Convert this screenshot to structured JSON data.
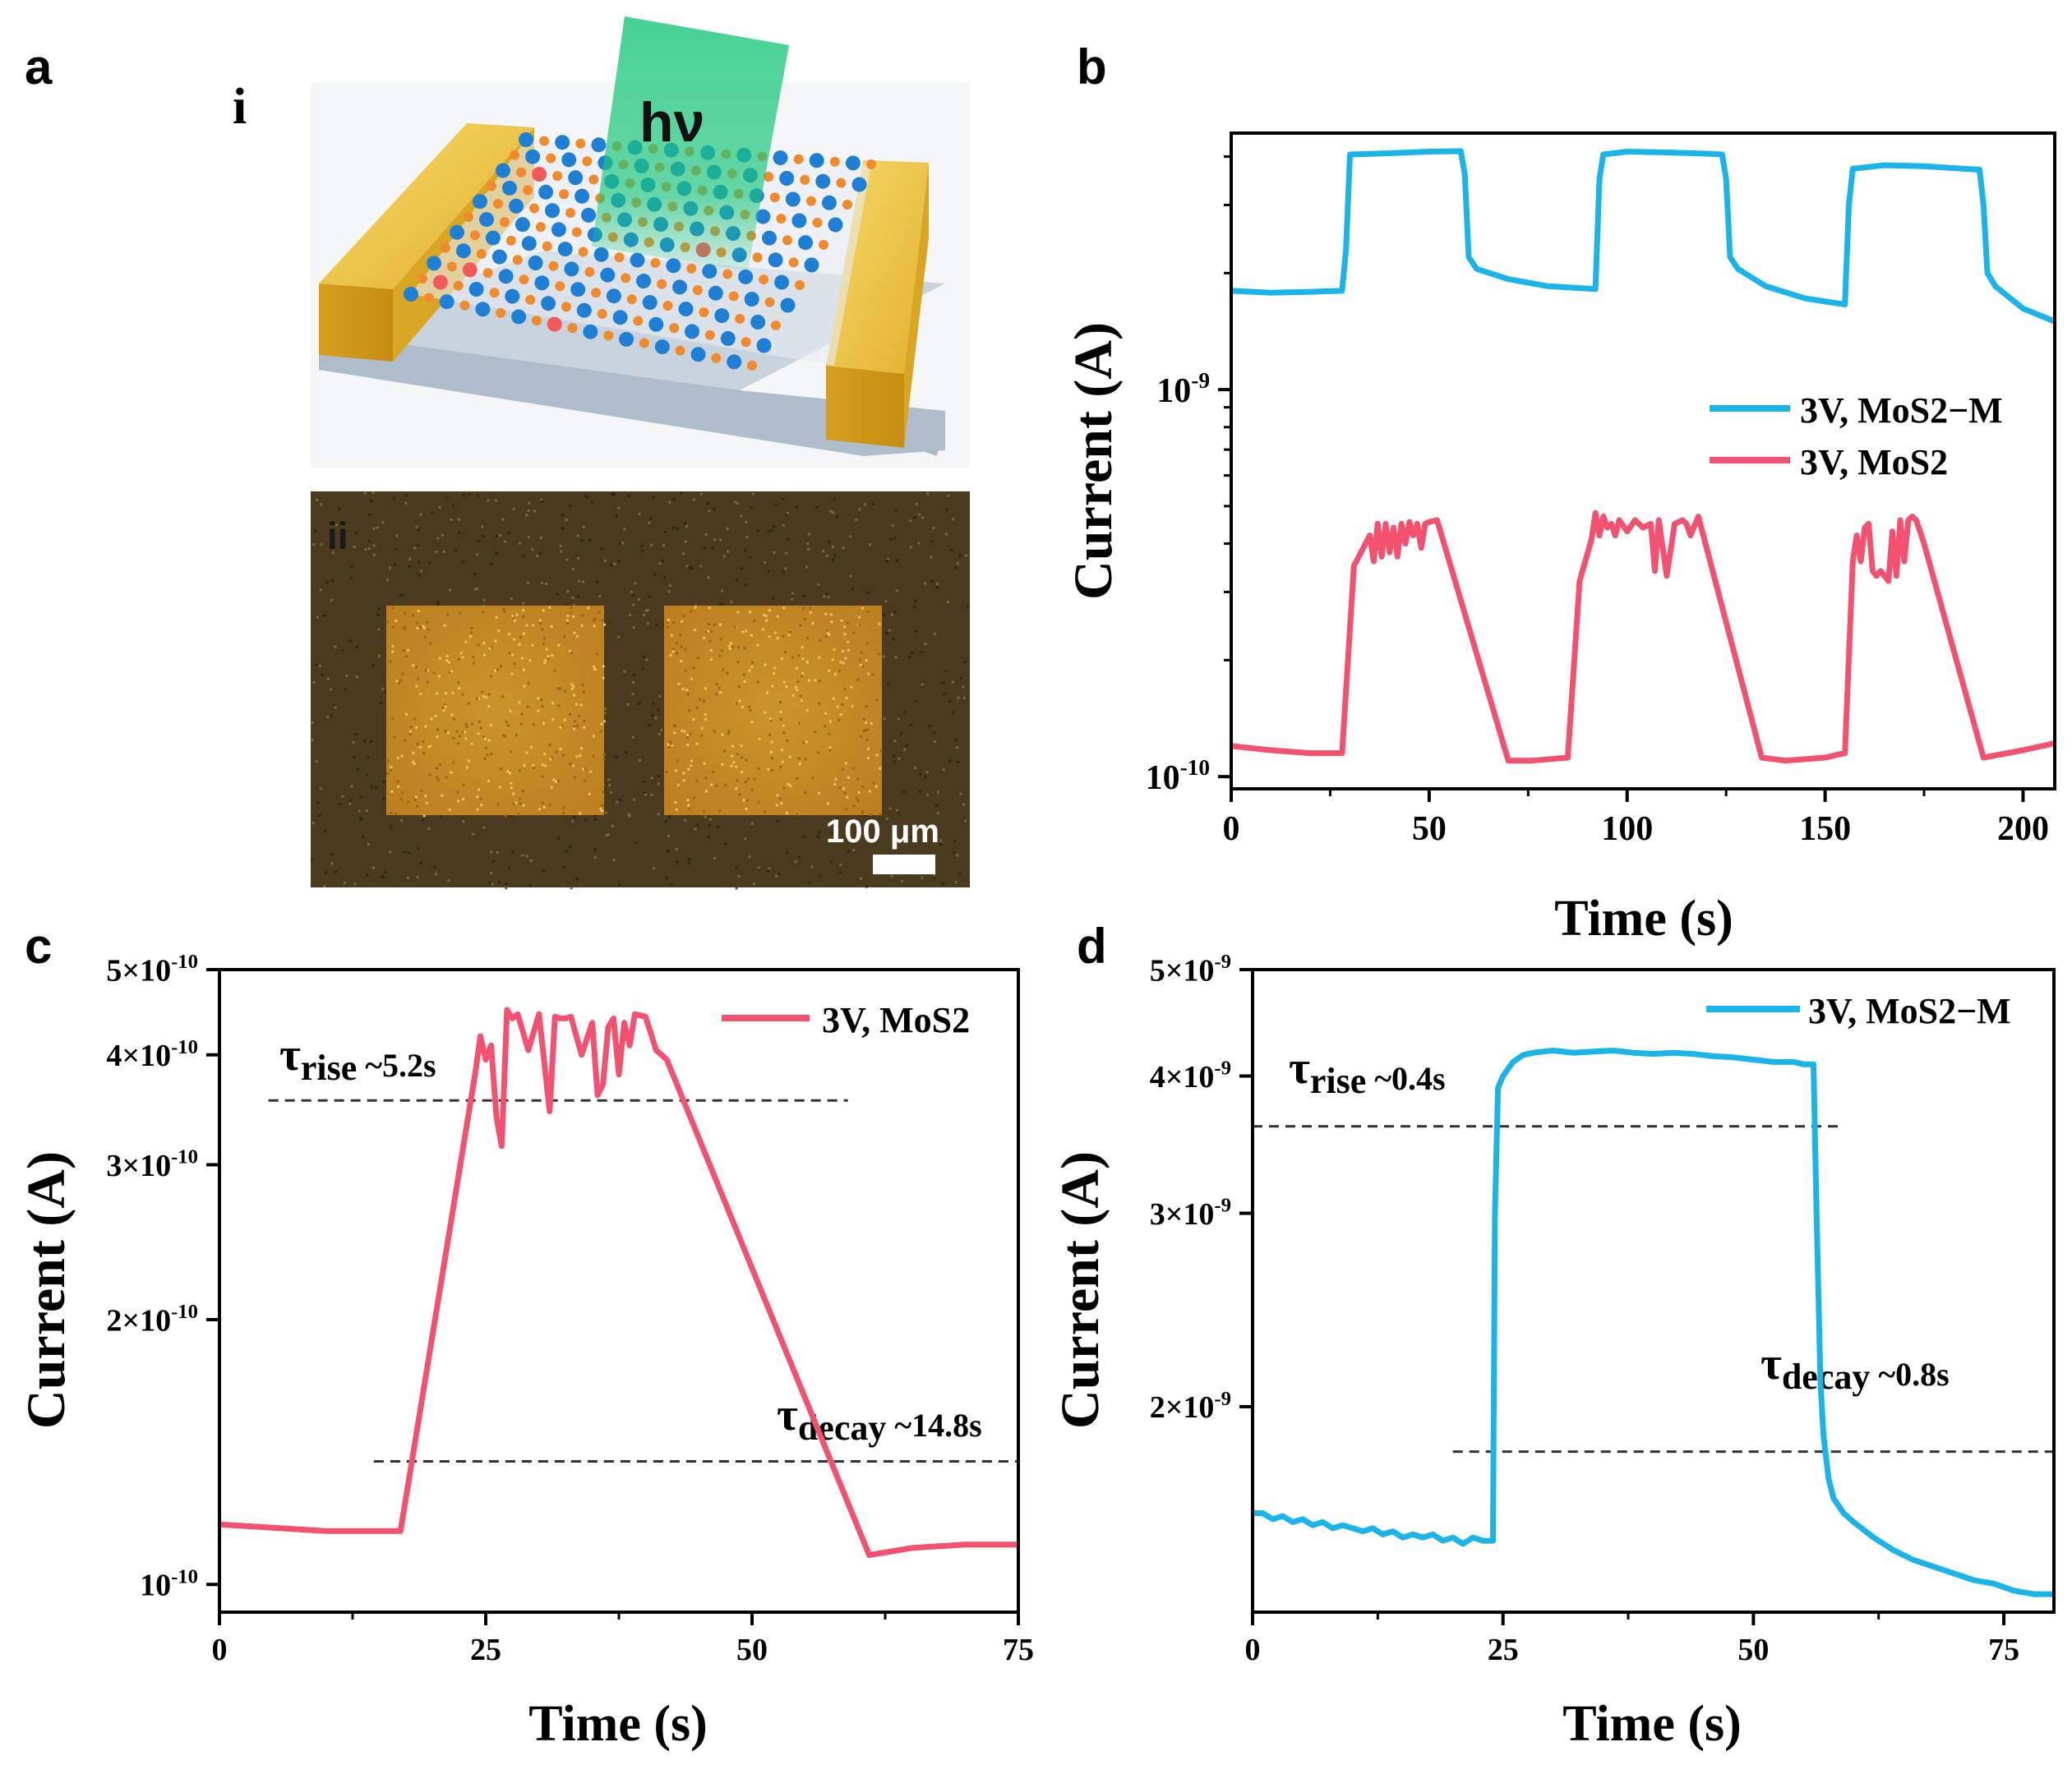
{
  "figure": {
    "panel_labels": {
      "a": "a",
      "b": "b",
      "c": "c",
      "d": "d"
    },
    "sublabels": {
      "i": "i",
      "ii": "ii"
    },
    "schematic": {
      "beam_label": "hν"
    },
    "micrograph": {
      "scale_bar": "100 μm"
    },
    "colors": {
      "blue": "#1ab4ea",
      "red": "#f2526f",
      "gold": "#e7b633",
      "beam": "#19c77a"
    }
  },
  "chart_data": [
    {
      "id": "b",
      "type": "line",
      "xscale": "linear",
      "yscale": "log",
      "xlabel": "Time (s)",
      "ylabel": "Current (A)",
      "xlim": [
        0,
        208
      ],
      "ylim": [
        9.3e-11,
        4.6e-09
      ],
      "xticks": [
        {
          "v": 0,
          "label": "0"
        },
        {
          "v": 50,
          "label": "50"
        },
        {
          "v": 100,
          "label": "100"
        },
        {
          "v": 150,
          "label": "150"
        },
        {
          "v": 200,
          "label": "200"
        }
      ],
      "yticks": [
        {
          "v": 1e-10,
          "base": "10",
          "exp": "-10"
        },
        {
          "v": 1e-09,
          "base": "10",
          "exp": "-9"
        }
      ],
      "legend": {
        "position": "center-right",
        "entries": [
          "3V, MoS2−M",
          "3V, MoS2"
        ]
      },
      "series": [
        {
          "name": "3V, MoS2−M",
          "color": "#1ab4ea",
          "x": [
            0,
            10,
            20,
            28,
            29,
            30,
            40,
            50,
            58,
            59,
            60,
            62,
            70,
            80,
            92,
            93,
            94,
            100,
            110,
            120,
            124,
            125,
            126,
            128,
            135,
            145,
            155,
            156,
            157,
            165,
            175,
            185,
            189,
            190,
            191,
            193,
            200,
            208
          ],
          "y": [
            1.8e-09,
            1.78e-09,
            1.79e-09,
            1.8e-09,
            2.3e-09,
            4.05e-09,
            4.08e-09,
            4.12e-09,
            4.13e-09,
            3.6e-09,
            2.2e-09,
            2.05e-09,
            1.93e-09,
            1.85e-09,
            1.82e-09,
            3.5e-09,
            4.05e-09,
            4.12e-09,
            4.1e-09,
            4.07e-09,
            4.05e-09,
            3.5e-09,
            2.2e-09,
            2.05e-09,
            1.85e-09,
            1.72e-09,
            1.66e-09,
            3e-09,
            3.72e-09,
            3.8e-09,
            3.78e-09,
            3.72e-09,
            3.7e-09,
            3e-09,
            2e-09,
            1.85e-09,
            1.62e-09,
            1.5e-09
          ]
        },
        {
          "name": "3V, MoS2",
          "color": "#f2526f",
          "x": [
            0,
            10,
            20,
            28,
            31,
            35,
            36,
            37,
            38,
            39,
            40,
            41,
            42,
            43,
            44,
            45,
            46,
            47,
            48,
            49,
            50,
            52,
            70,
            76,
            85,
            88,
            91,
            92,
            93,
            94,
            95,
            96,
            97,
            98,
            100,
            102,
            104,
            106,
            107,
            108,
            110,
            112,
            114,
            115,
            116,
            118,
            134,
            140,
            150,
            155,
            157,
            158,
            159,
            160,
            161,
            162,
            163,
            164,
            165,
            166,
            167,
            168,
            169,
            170,
            171,
            172,
            173,
            174,
            175,
            190,
            200,
            208
          ],
          "y": [
            1.2e-10,
            1.17e-10,
            1.15e-10,
            1.15e-10,
            3.5e-10,
            4.2e-10,
            3.6e-10,
            4.5e-10,
            3.7e-10,
            4.5e-10,
            3.8e-10,
            4.4e-10,
            3.7e-10,
            4.5e-10,
            4e-10,
            4.55e-10,
            4.2e-10,
            4.5e-10,
            3.9e-10,
            4.5e-10,
            4.55e-10,
            4.6e-10,
            1.1e-10,
            1.1e-10,
            1.12e-10,
            3.2e-10,
            4.1e-10,
            4.8e-10,
            4.2e-10,
            4.7e-10,
            4.4e-10,
            4.5e-10,
            4.2e-10,
            4.6e-10,
            4.3e-10,
            4.6e-10,
            4.4e-10,
            4.5e-10,
            3.4e-10,
            4.6e-10,
            3.3e-10,
            4.5e-10,
            4.6e-10,
            4.5e-10,
            4.2e-10,
            4.7e-10,
            1.12e-10,
            1.1e-10,
            1.12e-10,
            1.15e-10,
            3.6e-10,
            4.2e-10,
            3.6e-10,
            4.4e-10,
            4.5e-10,
            3.4e-10,
            3.3e-10,
            3.4e-10,
            3.3e-10,
            3.2e-10,
            4.3e-10,
            3.3e-10,
            4.6e-10,
            3.6e-10,
            4.6e-10,
            4.7e-10,
            4.6e-10,
            4.3e-10,
            4e-10,
            1.12e-10,
            1.17e-10,
            1.22e-10
          ]
        }
      ]
    },
    {
      "id": "c",
      "type": "line",
      "xscale": "linear",
      "yscale": "log",
      "xlabel": "Time (s)",
      "ylabel": "Current (A)",
      "xlim": [
        0,
        75
      ],
      "ylim": [
        9.3e-11,
        5e-10
      ],
      "xticks": [
        {
          "v": 0,
          "label": "0"
        },
        {
          "v": 25,
          "label": "25"
        },
        {
          "v": 50,
          "label": "50"
        },
        {
          "v": 75,
          "label": "75"
        }
      ],
      "yticks": [
        {
          "v": 1e-10,
          "base": "10",
          "exp": "-10"
        },
        {
          "v": 2e-10,
          "base": "2×10",
          "exp": "-10"
        },
        {
          "v": 3e-10,
          "base": "3×10",
          "exp": "-10"
        },
        {
          "v": 4e-10,
          "base": "4×10",
          "exp": "-10"
        },
        {
          "v": 5e-10,
          "base": "5×10",
          "exp": "-10"
        }
      ],
      "legend": {
        "position": "top-right",
        "entries": [
          "3V, MoS2"
        ]
      },
      "ref_lines": [
        {
          "y": 3.55e-10,
          "x0": 4.6,
          "x1": 59,
          "label_main": "τ",
          "label_sub": "rise",
          "label_tail": " ~5.2s"
        },
        {
          "y": 1.38e-10,
          "x0": 14.5,
          "x1": 75,
          "label_main": "τ",
          "label_sub": "decay",
          "label_tail": " ~14.8s"
        }
      ],
      "series": [
        {
          "name": "3V, MoS2",
          "color": "#f2526f",
          "x": [
            0,
            5,
            10,
            17,
            24,
            24.5,
            25,
            25.5,
            26,
            26.5,
            27,
            27.5,
            28,
            29,
            30,
            31,
            31.5,
            32,
            32.5,
            33,
            34,
            35,
            35.5,
            36,
            36.5,
            37,
            37.5,
            38,
            38.5,
            39,
            40,
            41,
            42,
            61,
            65,
            70,
            75
          ],
          "y": [
            1.17e-10,
            1.16e-10,
            1.15e-10,
            1.15e-10,
            3.8e-10,
            4.2e-10,
            3.95e-10,
            4.1e-10,
            3.4e-10,
            3.15e-10,
            4.5e-10,
            4.4e-10,
            4.45e-10,
            4.05e-10,
            4.45e-10,
            3.45e-10,
            4.42e-10,
            4.4e-10,
            4.4e-10,
            4.42e-10,
            4e-10,
            4.35e-10,
            3.6e-10,
            3.7e-10,
            4.3e-10,
            4.4e-10,
            3.8e-10,
            4.35e-10,
            4.1e-10,
            4.45e-10,
            4.42e-10,
            4.05e-10,
            3.95e-10,
            1.08e-10,
            1.1e-10,
            1.11e-10,
            1.11e-10
          ]
        }
      ]
    },
    {
      "id": "d",
      "type": "line",
      "xscale": "linear",
      "yscale": "log",
      "xlabel": "Time (s)",
      "ylabel": "Current (A)",
      "xlim": [
        0,
        80
      ],
      "ylim": [
        1.3e-09,
        5e-09
      ],
      "xticks": [
        {
          "v": 0,
          "label": "0"
        },
        {
          "v": 25,
          "label": "25"
        },
        {
          "v": 50,
          "label": "50"
        },
        {
          "v": 75,
          "label": "75"
        }
      ],
      "yticks": [
        {
          "v": 2e-09,
          "base": "2×10",
          "exp": "-9"
        },
        {
          "v": 3e-09,
          "base": "3×10",
          "exp": "-9"
        },
        {
          "v": 4e-09,
          "base": "4×10",
          "exp": "-9"
        },
        {
          "v": 5e-09,
          "base": "5×10",
          "exp": "-9"
        }
      ],
      "legend": {
        "position": "top-right",
        "entries": [
          "3V, MoS2−M"
        ]
      },
      "ref_lines": [
        {
          "y": 3.6e-09,
          "x0": 0,
          "x1": 59,
          "label_main": "τ",
          "label_sub": "rise",
          "label_tail": " ~0.4s"
        },
        {
          "y": 1.82e-09,
          "x0": 20,
          "x1": 80,
          "label_main": "τ",
          "label_sub": "decay",
          "label_tail": " ~0.8s"
        }
      ],
      "series": [
        {
          "name": "3V, MoS2−M",
          "color": "#1ab4ea",
          "x": [
            0,
            1,
            2,
            3,
            4,
            5,
            6,
            7,
            8,
            9,
            10,
            11,
            12,
            13,
            14,
            15,
            16,
            17,
            18,
            19,
            20,
            21,
            22,
            23,
            24,
            24.2,
            24.5,
            25,
            26,
            27,
            28,
            29,
            30,
            32,
            34,
            36,
            38,
            40,
            42,
            44,
            46,
            48,
            50,
            52,
            54,
            55,
            56,
            56.3,
            56.7,
            57,
            57.5,
            58,
            59,
            60,
            62,
            64,
            66,
            68,
            70,
            72,
            74,
            76,
            78,
            80
          ],
          "y": [
            1.6e-09,
            1.6e-09,
            1.58e-09,
            1.59e-09,
            1.57e-09,
            1.58e-09,
            1.56e-09,
            1.57e-09,
            1.55e-09,
            1.56e-09,
            1.55e-09,
            1.54e-09,
            1.55e-09,
            1.53e-09,
            1.54e-09,
            1.52e-09,
            1.53e-09,
            1.52e-09,
            1.53e-09,
            1.51e-09,
            1.52e-09,
            1.5e-09,
            1.52e-09,
            1.51e-09,
            1.51e-09,
            3e-09,
            3.9e-09,
            4e-09,
            4.12e-09,
            4.18e-09,
            4.2e-09,
            4.21e-09,
            4.22e-09,
            4.2e-09,
            4.21e-09,
            4.22e-09,
            4.2e-09,
            4.19e-09,
            4.2e-09,
            4.19e-09,
            4.17e-09,
            4.16e-09,
            4.14e-09,
            4.12e-09,
            4.12e-09,
            4.1e-09,
            4.1e-09,
            3e-09,
            2.1e-09,
            1.88e-09,
            1.72e-09,
            1.65e-09,
            1.6e-09,
            1.57e-09,
            1.52e-09,
            1.48e-09,
            1.45e-09,
            1.43e-09,
            1.41e-09,
            1.39e-09,
            1.38e-09,
            1.36e-09,
            1.35e-09,
            1.35e-09
          ]
        }
      ]
    }
  ]
}
